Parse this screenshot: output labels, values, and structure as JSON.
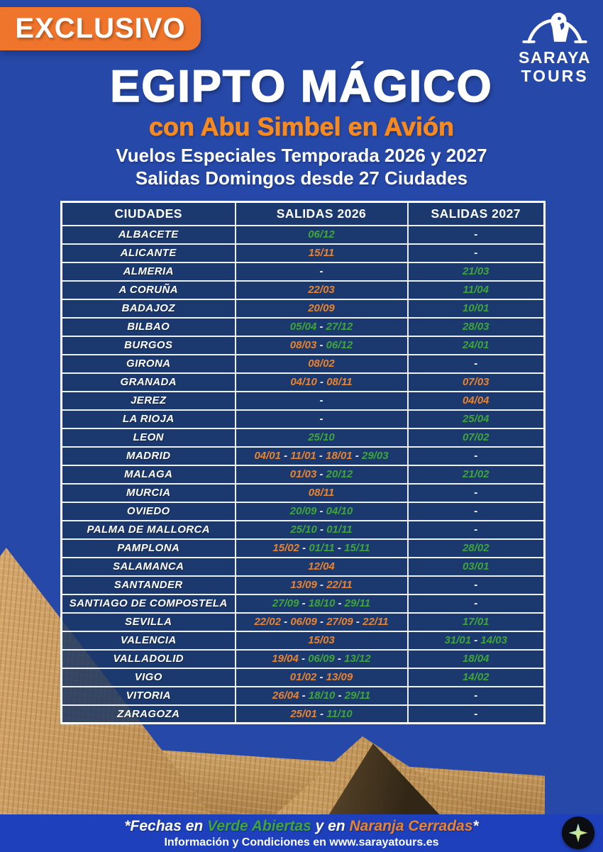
{
  "badge": {
    "label": "EXCLUSIVO"
  },
  "logo": {
    "line1": "SARAYA",
    "line2": "TOURS",
    "icon": "falcon-arch-icon"
  },
  "header": {
    "title": "EGIPTO MÁGICO",
    "subtitle": "con Abu Simbel en Avión",
    "line1": "Vuelos Especiales Temporada 2026 y 2027",
    "line2": "Salidas Domingos desde 27 Ciudades"
  },
  "table": {
    "columns": [
      "CIUDADES",
      "SALIDAS 2026",
      "SALIDAS 2027"
    ],
    "empty_cell": "-",
    "rows": [
      {
        "city": "ALBACETE",
        "salidas_2026": [
          {
            "date": "06/12",
            "status": "open"
          }
        ],
        "salidas_2027": []
      },
      {
        "city": "ALICANTE",
        "salidas_2026": [
          {
            "date": "15/11",
            "status": "closed"
          }
        ],
        "salidas_2027": []
      },
      {
        "city": "ALMERIA",
        "salidas_2026": [],
        "salidas_2027": [
          {
            "date": "21/03",
            "status": "open"
          }
        ]
      },
      {
        "city": "A CORUÑA",
        "salidas_2026": [
          {
            "date": "22/03",
            "status": "closed"
          }
        ],
        "salidas_2027": [
          {
            "date": "11/04",
            "status": "open"
          }
        ]
      },
      {
        "city": "BADAJOZ",
        "salidas_2026": [
          {
            "date": "20/09",
            "status": "closed"
          }
        ],
        "salidas_2027": [
          {
            "date": "10/01",
            "status": "open"
          }
        ]
      },
      {
        "city": "BILBAO",
        "salidas_2026": [
          {
            "date": "05/04",
            "status": "open"
          },
          {
            "date": "27/12",
            "status": "open"
          }
        ],
        "salidas_2027": [
          {
            "date": "28/03",
            "status": "open"
          }
        ]
      },
      {
        "city": "BURGOS",
        "salidas_2026": [
          {
            "date": "08/03",
            "status": "closed"
          },
          {
            "date": "06/12",
            "status": "open"
          }
        ],
        "salidas_2027": [
          {
            "date": "24/01",
            "status": "open"
          }
        ]
      },
      {
        "city": "GIRONA",
        "salidas_2026": [
          {
            "date": "08/02",
            "status": "closed"
          }
        ],
        "salidas_2027": []
      },
      {
        "city": "GRANADA",
        "salidas_2026": [
          {
            "date": "04/10",
            "status": "closed"
          },
          {
            "date": "08/11",
            "status": "closed"
          }
        ],
        "salidas_2027": [
          {
            "date": "07/03",
            "status": "closed"
          }
        ]
      },
      {
        "city": "JEREZ",
        "salidas_2026": [],
        "salidas_2027": [
          {
            "date": "04/04",
            "status": "closed"
          }
        ]
      },
      {
        "city": "LA RIOJA",
        "salidas_2026": [],
        "salidas_2027": [
          {
            "date": "25/04",
            "status": "open"
          }
        ]
      },
      {
        "city": "LEON",
        "salidas_2026": [
          {
            "date": "25/10",
            "status": "open"
          }
        ],
        "salidas_2027": [
          {
            "date": "07/02",
            "status": "open"
          }
        ]
      },
      {
        "city": "MADRID",
        "salidas_2026": [
          {
            "date": "04/01",
            "status": "closed"
          },
          {
            "date": "11/01",
            "status": "closed"
          },
          {
            "date": "18/01",
            "status": "closed"
          },
          {
            "date": "29/03",
            "status": "open"
          }
        ],
        "salidas_2027": []
      },
      {
        "city": "MALAGA",
        "salidas_2026": [
          {
            "date": "01/03",
            "status": "closed"
          },
          {
            "date": "20/12",
            "status": "open"
          }
        ],
        "salidas_2027": [
          {
            "date": "21/02",
            "status": "open"
          }
        ]
      },
      {
        "city": "MURCIA",
        "salidas_2026": [
          {
            "date": "08/11",
            "status": "closed"
          }
        ],
        "salidas_2027": []
      },
      {
        "city": "OVIEDO",
        "salidas_2026": [
          {
            "date": "20/09",
            "status": "open"
          },
          {
            "date": "04/10",
            "status": "open"
          }
        ],
        "salidas_2027": []
      },
      {
        "city": "PALMA DE MALLORCA",
        "salidas_2026": [
          {
            "date": "25/10",
            "status": "open"
          },
          {
            "date": "01/11",
            "status": "open"
          }
        ],
        "salidas_2027": []
      },
      {
        "city": "PAMPLONA",
        "salidas_2026": [
          {
            "date": "15/02",
            "status": "closed"
          },
          {
            "date": "01/11",
            "status": "open"
          },
          {
            "date": "15/11",
            "status": "open"
          }
        ],
        "salidas_2027": [
          {
            "date": "28/02",
            "status": "open"
          }
        ]
      },
      {
        "city": "SALAMANCA",
        "salidas_2026": [
          {
            "date": "12/04",
            "status": "closed"
          }
        ],
        "salidas_2027": [
          {
            "date": "03/01",
            "status": "open"
          }
        ]
      },
      {
        "city": "SANTANDER",
        "salidas_2026": [
          {
            "date": "13/09",
            "status": "closed"
          },
          {
            "date": "22/11",
            "status": "closed"
          }
        ],
        "salidas_2027": []
      },
      {
        "city": "SANTIAGO DE COMPOSTELA",
        "salidas_2026": [
          {
            "date": "27/09",
            "status": "open"
          },
          {
            "date": "18/10",
            "status": "open"
          },
          {
            "date": "29/11",
            "status": "open"
          }
        ],
        "salidas_2027": []
      },
      {
        "city": "SEVILLA",
        "salidas_2026": [
          {
            "date": "22/02",
            "status": "closed"
          },
          {
            "date": "06/09",
            "status": "closed"
          },
          {
            "date": "27/09",
            "status": "closed"
          },
          {
            "date": "22/11",
            "status": "closed"
          }
        ],
        "salidas_2027": [
          {
            "date": "17/01",
            "status": "open"
          }
        ]
      },
      {
        "city": "VALENCIA",
        "salidas_2026": [
          {
            "date": "15/03",
            "status": "closed"
          }
        ],
        "salidas_2027": [
          {
            "date": "31/01",
            "status": "open"
          },
          {
            "date": "14/03",
            "status": "open"
          }
        ]
      },
      {
        "city": "VALLADOLID",
        "salidas_2026": [
          {
            "date": "19/04",
            "status": "closed"
          },
          {
            "date": "06/09",
            "status": "open"
          },
          {
            "date": "13/12",
            "status": "open"
          }
        ],
        "salidas_2027": [
          {
            "date": "18/04",
            "status": "open"
          }
        ]
      },
      {
        "city": "VIGO",
        "salidas_2026": [
          {
            "date": "01/02",
            "status": "closed"
          },
          {
            "date": "13/09",
            "status": "closed"
          }
        ],
        "salidas_2027": [
          {
            "date": "14/02",
            "status": "open"
          }
        ]
      },
      {
        "city": "VITORIA",
        "salidas_2026": [
          {
            "date": "26/04",
            "status": "closed"
          },
          {
            "date": "18/10",
            "status": "open"
          },
          {
            "date": "29/11",
            "status": "open"
          }
        ],
        "salidas_2027": []
      },
      {
        "city": "ZARAGOZA",
        "salidas_2026": [
          {
            "date": "25/01",
            "status": "closed"
          },
          {
            "date": "11/10",
            "status": "open"
          }
        ],
        "salidas_2027": []
      }
    ]
  },
  "footer": {
    "legend_segments": [
      {
        "text": "*Fechas en ",
        "color": "white"
      },
      {
        "text": "Verde Abiertas",
        "color": "open"
      },
      {
        "text": " y en ",
        "color": "white"
      },
      {
        "text": "Naranja Cerradas",
        "color": "closed"
      },
      {
        "text": "*",
        "color": "white"
      }
    ],
    "info": "Información y Condiciones en www.sarayatours.es"
  },
  "colors": {
    "background_blue": "#2648a8",
    "footer_blue": "#1e40bd",
    "cell_navy": "#1d3a6e",
    "accent_orange": "#f0752c",
    "subtitle_orange": "#f6891f",
    "date_open_green": "#3fa53a",
    "date_closed_orange": "#e8832f"
  }
}
